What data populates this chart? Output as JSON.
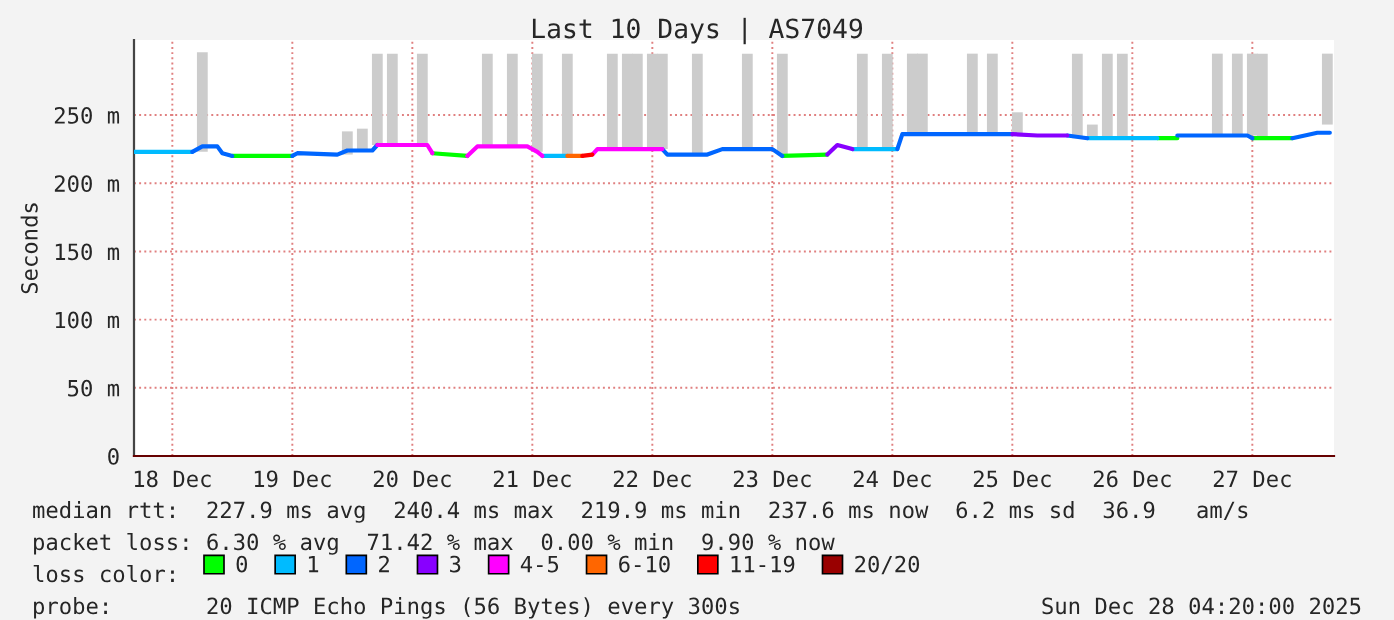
{
  "chart_data": {
    "type": "line",
    "title": "Last 10 Days | AS7049",
    "ylabel": "Seconds",
    "legend_title": "loss color:",
    "legend": "bottom",
    "grid": true,
    "xlim": [
      "2025-12-18T04:20",
      "2025-12-28T04:20"
    ],
    "xticks": [
      {
        "value": "2025-12-18T12:00",
        "label": "18 Dec"
      },
      {
        "value": "2025-12-19T12:00",
        "label": "19 Dec"
      },
      {
        "value": "2025-12-20T12:00",
        "label": "20 Dec"
      },
      {
        "value": "2025-12-21T12:00",
        "label": "21 Dec"
      },
      {
        "value": "2025-12-22T12:00",
        "label": "22 Dec"
      },
      {
        "value": "2025-12-23T12:00",
        "label": "23 Dec"
      },
      {
        "value": "2025-12-24T12:00",
        "label": "24 Dec"
      },
      {
        "value": "2025-12-25T12:00",
        "label": "25 Dec"
      },
      {
        "value": "2025-12-26T12:00",
        "label": "26 Dec"
      },
      {
        "value": "2025-12-27T12:00",
        "label": "27 Dec"
      }
    ],
    "ylim": [
      0,
      305
    ],
    "yticks": [
      0,
      {
        "value": 50,
        "label": "50 m"
      },
      {
        "value": 100,
        "label": "100 m"
      },
      {
        "value": 150,
        "label": "150 m"
      },
      {
        "value": 200,
        "label": "200 m"
      },
      {
        "value": 250,
        "label": "250 m"
      }
    ],
    "series": [
      {
        "type": "bar",
        "color": "#cccccc",
        "x": [
          "2025-12-18T18:00",
          "2025-12-19T23:00",
          "2025-12-20T02:00",
          "2025-12-20T05:00",
          "2025-12-20T08:00",
          "2025-12-20T14:00",
          "2025-12-21T03:00",
          "2025-12-21T08:00",
          "2025-12-21T13:00",
          "2025-12-21T19:00",
          "2025-12-22T04:00",
          "2025-12-22T07:00",
          "2025-12-22T09:00",
          "2025-12-22T12:00",
          "2025-12-22T14:00",
          "2025-12-22T21:00",
          "2025-12-23T07:00",
          "2025-12-23T14:00",
          "2025-12-24T06:00",
          "2025-12-24T11:00",
          "2025-12-24T16:00",
          "2025-12-24T18:00",
          "2025-12-25T04:00",
          "2025-12-25T08:00",
          "2025-12-25T13:00",
          "2025-12-26T01:00",
          "2025-12-26T04:00",
          "2025-12-26T07:00",
          "2025-12-26T10:00",
          "2025-12-27T05:00",
          "2025-12-27T09:00",
          "2025-12-27T12:00",
          "2025-12-27T14:00",
          "2025-12-28T03:00"
        ],
        "base": [
          223,
          221,
          224,
          228,
          228,
          228,
          227,
          227,
          223,
          220,
          225,
          225,
          225,
          225,
          225,
          221,
          225,
          221,
          225,
          225,
          236,
          236,
          236,
          236,
          235,
          233,
          233,
          233,
          233,
          235,
          235,
          235,
          233,
          243
        ],
        "values": [
          73,
          17,
          16,
          67,
          67,
          67,
          68,
          68,
          72,
          75,
          70,
          70,
          70,
          70,
          70,
          74,
          70,
          74,
          70,
          70,
          59,
          59,
          59,
          59,
          17,
          62,
          10,
          62,
          62,
          60,
          60,
          60,
          62,
          52
        ]
      },
      {
        "name": "0",
        "color": "#00ff00",
        "x": [
          "2025-12-19T00:00",
          "2025-12-19T12:00",
          null,
          "2025-12-20T16:00",
          "2025-12-20T23:00",
          null,
          "2025-12-23T14:00",
          "2025-12-23T23:00",
          null,
          "2025-12-26T17:00",
          "2025-12-26T21:00",
          null,
          "2025-12-27T12:00",
          "2025-12-27T20:00"
        ],
        "values": [
          220,
          220,
          null,
          222,
          220,
          null,
          220,
          221,
          null,
          233,
          233,
          null,
          233,
          233
        ]
      },
      {
        "name": "1",
        "color": "#00bbff",
        "x": [
          "2025-12-18T04:20",
          "2025-12-18T16:00",
          null,
          "2025-12-21T14:00",
          "2025-12-21T19:00",
          null,
          "2025-12-24T04:00",
          "2025-12-24T13:00",
          null,
          "2025-12-26T03:00",
          "2025-12-26T17:00"
        ],
        "values": [
          223,
          223,
          null,
          220,
          220,
          null,
          225,
          225,
          null,
          233,
          233
        ]
      },
      {
        "name": "2",
        "color": "#0066ff",
        "x": [
          "2025-12-18T16:00",
          "2025-12-18T18:00",
          "2025-12-18T21:00",
          "2025-12-18T22:00",
          "2025-12-19T00:00",
          null,
          "2025-12-19T12:00",
          "2025-12-19T13:00",
          "2025-12-19T21:00",
          "2025-12-19T23:00",
          "2025-12-20T04:00",
          "2025-12-20T05:00",
          null,
          "2025-12-22T14:00",
          "2025-12-22T15:00",
          "2025-12-22T23:00",
          "2025-12-23T02:00",
          "2025-12-23T12:00",
          "2025-12-23T14:00",
          null,
          "2025-12-24T13:00",
          "2025-12-24T14:00",
          "2025-12-25T12:00",
          null,
          "2025-12-25T23:00",
          "2025-12-26T03:00",
          null,
          "2025-12-26T21:00",
          "2025-12-27T11:00",
          "2025-12-27T12:00",
          null,
          "2025-12-27T20:00",
          "2025-12-28T01:00",
          "2025-12-28T03:30"
        ],
        "values": [
          223,
          227,
          227,
          222,
          220,
          null,
          220,
          222,
          221,
          224,
          224,
          228,
          null,
          225,
          221,
          221,
          225,
          225,
          220,
          null,
          225,
          236,
          236,
          null,
          235,
          233,
          null,
          235,
          235,
          233,
          null,
          233,
          237,
          237
        ]
      },
      {
        "name": "3",
        "color": "#8800ff",
        "x": [
          "2025-12-23T23:00",
          "2025-12-24T01:00",
          "2025-12-24T04:00",
          null,
          "2025-12-25T12:00",
          "2025-12-25T17:00",
          "2025-12-25T23:00"
        ],
        "values": [
          221,
          228,
          225,
          null,
          236,
          235,
          235
        ]
      },
      {
        "name": "4-5",
        "color": "#ff00ff",
        "x": [
          "2025-12-20T05:00",
          "2025-12-20T15:00",
          "2025-12-20T16:00",
          null,
          "2025-12-20T23:00",
          "2025-12-21T01:00",
          "2025-12-21T11:00",
          "2025-12-21T13:00",
          "2025-12-21T14:00",
          null,
          "2025-12-22T00:00",
          "2025-12-22T01:00",
          "2025-12-22T14:00"
        ],
        "values": [
          228,
          228,
          222,
          null,
          220,
          227,
          227,
          223,
          220,
          null,
          221,
          225,
          225
        ]
      },
      {
        "name": "6-10",
        "color": "#ff6600",
        "x": [
          "2025-12-21T19:00",
          "2025-12-21T22:00"
        ],
        "values": [
          220,
          220
        ]
      },
      {
        "name": "11-19",
        "color": "#ff0000",
        "x": [
          "2025-12-21T22:00",
          "2025-12-22T00:00"
        ],
        "values": [
          220,
          221
        ]
      },
      {
        "name": "20/20",
        "color": "#990000",
        "x": [
          null
        ],
        "values": [
          null
        ]
      }
    ],
    "annotations": [
      "median rtt:  227.9 ms avg  240.4 ms max  219.9 ms min  237.6 ms now  6.2 ms sd  36.9   am/s",
      "packet loss: 6.30 % avg  71.42 % max  0.00 % min  9.90 % now",
      "probe:       20 ICMP Echo Pings (56 Bytes) every 300s",
      "Sun Dec 28 04:20:00 2025"
    ]
  }
}
